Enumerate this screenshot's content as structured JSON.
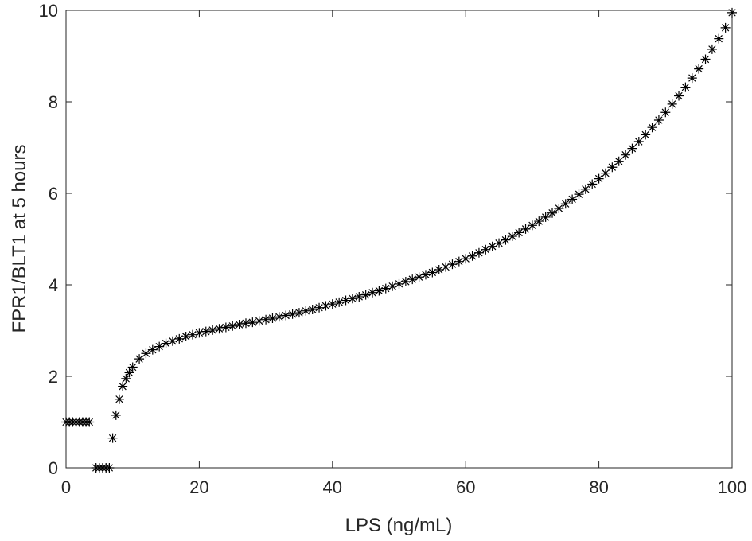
{
  "chart_data": {
    "type": "scatter",
    "xlabel": "LPS (ng/mL)",
    "ylabel": "FPR1/BLT1 at 5 hours",
    "xlim": [
      0,
      100
    ],
    "ylim": [
      0,
      10
    ],
    "xticks": [
      0,
      20,
      40,
      60,
      80,
      100
    ],
    "yticks": [
      0,
      2,
      4,
      6,
      8,
      10
    ],
    "marker": "*",
    "color": "#000000",
    "x": [
      0,
      0.5,
      1,
      1.5,
      2,
      2.5,
      3,
      3.5,
      4.5,
      5,
      5.5,
      6,
      6.5,
      7,
      7.5,
      8,
      8.5,
      9,
      9.5,
      10,
      11,
      12,
      13,
      14,
      15,
      16,
      17,
      18,
      19,
      20,
      21,
      22,
      23,
      24,
      25,
      26,
      27,
      28,
      29,
      30,
      31,
      32,
      33,
      34,
      35,
      36,
      37,
      38,
      39,
      40,
      41,
      42,
      43,
      44,
      45,
      46,
      47,
      48,
      49,
      50,
      51,
      52,
      53,
      54,
      55,
      56,
      57,
      58,
      59,
      60,
      61,
      62,
      63,
      64,
      65,
      66,
      67,
      68,
      69,
      70,
      71,
      72,
      73,
      74,
      75,
      76,
      77,
      78,
      79,
      80,
      81,
      82,
      83,
      84,
      85,
      86,
      87,
      88,
      89,
      90,
      91,
      92,
      93,
      94,
      95,
      96,
      97,
      98,
      99,
      100
    ],
    "values": [
      1,
      1,
      1,
      1,
      1,
      1,
      1,
      1,
      0,
      0,
      0,
      0,
      0,
      0.65,
      1.15,
      1.5,
      1.78,
      1.95,
      2.08,
      2.2,
      2.38,
      2.5,
      2.58,
      2.65,
      2.72,
      2.77,
      2.82,
      2.87,
      2.91,
      2.95,
      2.98,
      3.01,
      3.04,
      3.07,
      3.1,
      3.13,
      3.16,
      3.18,
      3.21,
      3.24,
      3.27,
      3.3,
      3.33,
      3.36,
      3.39,
      3.43,
      3.46,
      3.5,
      3.54,
      3.58,
      3.62,
      3.66,
      3.7,
      3.74,
      3.78,
      3.83,
      3.87,
      3.92,
      3.97,
      4.02,
      4.07,
      4.12,
      4.17,
      4.22,
      4.27,
      4.33,
      4.39,
      4.45,
      4.51,
      4.57,
      4.63,
      4.7,
      4.77,
      4.84,
      4.91,
      4.98,
      5.06,
      5.14,
      5.22,
      5.3,
      5.39,
      5.48,
      5.57,
      5.67,
      5.77,
      5.87,
      5.98,
      6.09,
      6.2,
      6.32,
      6.44,
      6.57,
      6.7,
      6.84,
      6.98,
      7.13,
      7.28,
      7.44,
      7.6,
      7.77,
      7.95,
      8.13,
      8.32,
      8.52,
      8.72,
      8.93,
      9.15,
      9.38,
      9.62,
      9.95
    ]
  }
}
